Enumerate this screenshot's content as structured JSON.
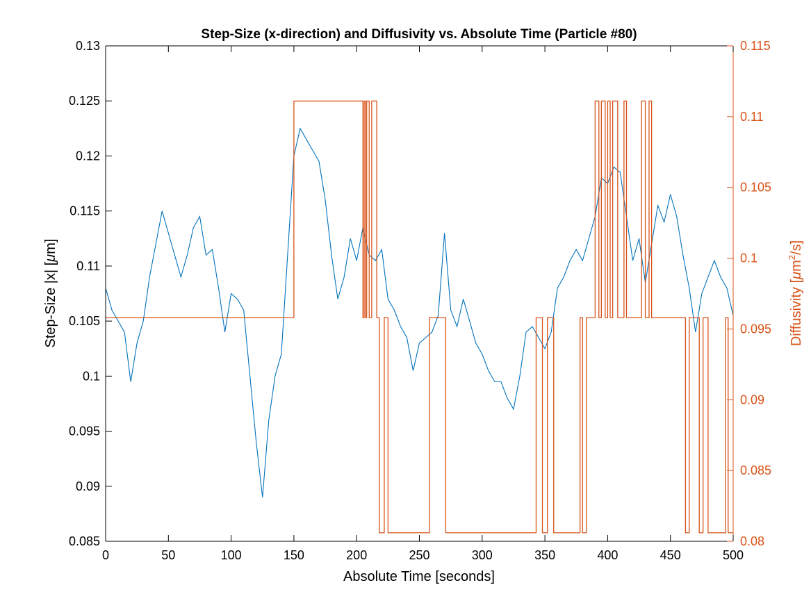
{
  "chart_data": {
    "type": "line",
    "title": "Step-Size (x-direction) and Diffusivity vs. Absolute Time (Particle #80)",
    "xlabel": "Absolute Time [seconds]",
    "ylabel_left_prefix": "Step-Size |x| [",
    "ylabel_left_mu": "μ",
    "ylabel_left_suffix": "m]",
    "ylabel_right_prefix": "Diffusivity [",
    "ylabel_right_mu": "μ",
    "ylabel_right_mid": "m",
    "ylabel_right_sup": "2",
    "ylabel_right_suffix": "/s]",
    "xlim": [
      0,
      500
    ],
    "ylim_left": [
      0.085,
      0.13
    ],
    "ylim_right": [
      0.08,
      0.115
    ],
    "grid": false,
    "x_ticks": [
      "0",
      "50",
      "100",
      "150",
      "200",
      "250",
      "300",
      "350",
      "400",
      "450",
      "500"
    ],
    "y_left_ticks": [
      "0.085",
      "0.09",
      "0.095",
      "0.1",
      "0.105",
      "0.11",
      "0.115",
      "0.12",
      "0.125",
      "0.13"
    ],
    "y_right_ticks": [
      "0.08",
      "0.085",
      "0.09",
      "0.095",
      "0.1",
      "0.105",
      "0.11",
      "0.115"
    ],
    "colors": {
      "left_series": "#0072BD",
      "right_series": "#D95319",
      "axes": "#000000"
    },
    "series": [
      {
        "axis": "left",
        "color": "#0072BD",
        "x": [
          0,
          5,
          10,
          15,
          20,
          25,
          30,
          35,
          40,
          45,
          50,
          55,
          60,
          65,
          70,
          75,
          80,
          85,
          90,
          95,
          100,
          105,
          110,
          115,
          120,
          125,
          130,
          135,
          140,
          145,
          150,
          155,
          160,
          165,
          170,
          175,
          180,
          185,
          190,
          195,
          200,
          205,
          210,
          215,
          220,
          225,
          230,
          235,
          240,
          245,
          250,
          255,
          260,
          265,
          270,
          275,
          280,
          285,
          290,
          295,
          300,
          305,
          310,
          315,
          320,
          325,
          330,
          335,
          340,
          345,
          350,
          355,
          360,
          365,
          370,
          375,
          380,
          385,
          390,
          395,
          400,
          405,
          410,
          415,
          420,
          425,
          430,
          435,
          440,
          445,
          450,
          455,
          460,
          465,
          470,
          475,
          480,
          485,
          490,
          495,
          500
        ],
        "y": [
          0.108,
          0.106,
          0.105,
          0.104,
          0.0995,
          0.103,
          0.105,
          0.109,
          0.112,
          0.115,
          0.113,
          0.111,
          0.109,
          0.111,
          0.1135,
          0.1145,
          0.111,
          0.1115,
          0.108,
          0.104,
          0.1075,
          0.107,
          0.106,
          0.1,
          0.094,
          0.089,
          0.096,
          0.1,
          0.102,
          0.111,
          0.12,
          0.1225,
          0.1215,
          0.1205,
          0.1195,
          0.116,
          0.111,
          0.107,
          0.109,
          0.1125,
          0.1105,
          0.1135,
          0.111,
          0.1105,
          0.1115,
          0.107,
          0.106,
          0.1045,
          0.1035,
          0.1005,
          0.103,
          0.1035,
          0.104,
          0.1055,
          0.113,
          0.106,
          0.1045,
          0.107,
          0.105,
          0.103,
          0.102,
          0.1005,
          0.0995,
          0.0995,
          0.098,
          0.097,
          0.1,
          0.104,
          0.1045,
          0.1035,
          0.1025,
          0.104,
          0.108,
          0.109,
          0.1105,
          0.1115,
          0.1105,
          0.1125,
          0.1145,
          0.118,
          0.1175,
          0.119,
          0.1185,
          0.1145,
          0.1105,
          0.1125,
          0.1085,
          0.112,
          0.1155,
          0.114,
          0.1165,
          0.1145,
          0.111,
          0.108,
          0.104,
          0.1075,
          0.109,
          0.1105,
          0.109,
          0.108,
          0.1055
        ]
      },
      {
        "axis": "right",
        "color": "#D95319",
        "step": true,
        "x": [
          0,
          150,
          150,
          205,
          205,
          206,
          206,
          207,
          207,
          208,
          208,
          210,
          210,
          212,
          212,
          216,
          216,
          218,
          218,
          222,
          222,
          225,
          225,
          258,
          258,
          262,
          262,
          271,
          271,
          343,
          343,
          348,
          348,
          352,
          352,
          357,
          357,
          378,
          378,
          380,
          380,
          383,
          383,
          390,
          390,
          393,
          393,
          395,
          395,
          398,
          398,
          400,
          400,
          402,
          402,
          404,
          404,
          408,
          408,
          413,
          413,
          415,
          415,
          427,
          427,
          430,
          430,
          433,
          433,
          435,
          435,
          462,
          462,
          465,
          465,
          473,
          473,
          476,
          476,
          480,
          480,
          494,
          494,
          496,
          496,
          500
        ],
        "y": [
          0.0958,
          0.0958,
          0.1111,
          0.1111,
          0.0958,
          0.0958,
          0.1111,
          0.1111,
          0.0958,
          0.0958,
          0.1111,
          0.1111,
          0.0958,
          0.0958,
          0.1111,
          0.1111,
          0.0958,
          0.0958,
          0.0806,
          0.0806,
          0.0958,
          0.0958,
          0.0806,
          0.0806,
          0.0958,
          0.0958,
          0.0958,
          0.0958,
          0.0806,
          0.0806,
          0.0958,
          0.0958,
          0.0806,
          0.0806,
          0.0958,
          0.0958,
          0.0806,
          0.0806,
          0.0958,
          0.0958,
          0.0806,
          0.0806,
          0.0958,
          0.0958,
          0.1111,
          0.1111,
          0.0958,
          0.0958,
          0.1111,
          0.1111,
          0.0958,
          0.0958,
          0.1111,
          0.1111,
          0.0958,
          0.0958,
          0.1111,
          0.1111,
          0.0958,
          0.0958,
          0.1111,
          0.1111,
          0.0958,
          0.0958,
          0.1111,
          0.1111,
          0.0958,
          0.0958,
          0.1111,
          0.1111,
          0.0958,
          0.0958,
          0.0806,
          0.0806,
          0.0958,
          0.0958,
          0.0806,
          0.0806,
          0.0958,
          0.0958,
          0.0806,
          0.0806,
          0.0958,
          0.0958,
          0.0806,
          0.0806
        ]
      }
    ]
  }
}
